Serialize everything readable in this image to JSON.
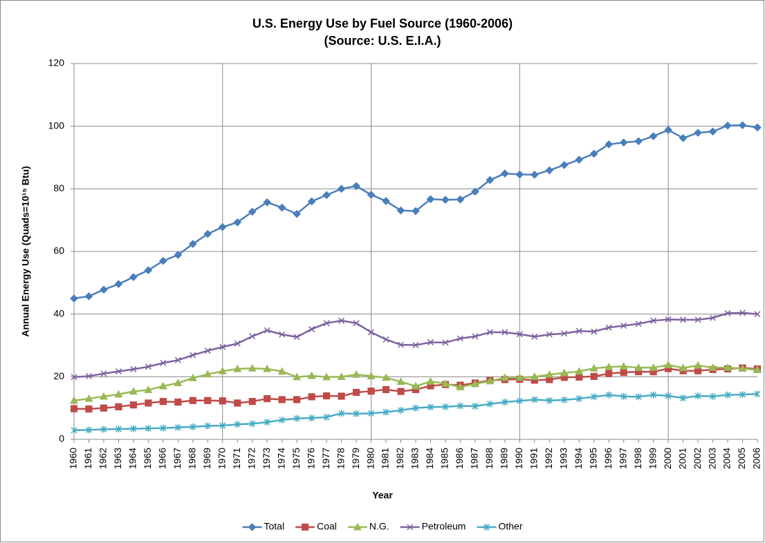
{
  "chart_data": {
    "type": "line",
    "title": "U.S. Energy Use by Fuel Source (1960-2006)",
    "subtitle": "(Source: U.S. E.I.A.)",
    "x_label": "Year",
    "y_label": "Annual Energy Use (Quads=10¹⁵ Btu)",
    "categories": [
      "1960",
      "1961",
      "1962",
      "1963",
      "1964",
      "1965",
      "1966",
      "1967",
      "1968",
      "1969",
      "1970",
      "1971",
      "1972",
      "1973",
      "1974",
      "1975",
      "1976",
      "1977",
      "1978",
      "1979",
      "1980",
      "1981",
      "1982",
      "1983",
      "1984",
      "1985",
      "1986",
      "1987",
      "1988",
      "1989",
      "1990",
      "1991",
      "1992",
      "1993",
      "1994",
      "1995",
      "1996",
      "1997",
      "1998",
      "1999",
      "2000",
      "2001",
      "2002",
      "2003",
      "2004",
      "2005",
      "2006"
    ],
    "ylim": [
      0,
      120
    ],
    "yticks": [
      0,
      20,
      40,
      60,
      80,
      100,
      120
    ],
    "grid": true,
    "legend": "bottom",
    "series": [
      {
        "name": "Total",
        "color": "#4a7ebb",
        "marker": "diamond",
        "values": [
          45,
          45.7,
          47.8,
          49.6,
          51.8,
          54,
          57,
          58.9,
          62.4,
          65.6,
          67.8,
          69.3,
          72.7,
          75.7,
          74,
          72,
          76,
          78,
          80,
          80.9,
          78.1,
          76.1,
          73.1,
          72.9,
          76.7,
          76.5,
          76.6,
          79.1,
          82.8,
          84.9,
          84.6,
          84.5,
          85.9,
          87.6,
          89.3,
          91.2,
          94.2,
          94.8,
          95.2,
          96.8,
          98.8,
          96.2,
          97.9,
          98.3,
          100.2,
          100.3,
          99.6
        ]
      },
      {
        "name": "Coal",
        "color": "#be4b48",
        "marker": "square",
        "values": [
          9.8,
          9.7,
          10,
          10.4,
          11,
          11.6,
          12.1,
          11.9,
          12.4,
          12.4,
          12.3,
          11.6,
          12.1,
          13,
          12.7,
          12.7,
          13.6,
          13.9,
          13.8,
          15,
          15.4,
          15.9,
          15.3,
          15.9,
          17.1,
          17.5,
          17.3,
          18,
          18.8,
          19.1,
          19.2,
          18.9,
          19.1,
          19.8,
          19.9,
          20.1,
          21,
          21.4,
          21.6,
          21.6,
          22.6,
          21.9,
          21.9,
          22.3,
          22.5,
          22.8,
          22.5
        ]
      },
      {
        "name": "N.G.",
        "color": "#98b954",
        "marker": "triangle",
        "values": [
          12.4,
          13,
          13.7,
          14.4,
          15.3,
          15.8,
          17,
          18,
          19.6,
          20.8,
          21.8,
          22.5,
          22.7,
          22.5,
          21.7,
          19.9,
          20.3,
          19.9,
          20,
          20.7,
          20.2,
          19.7,
          18.4,
          17,
          18.5,
          17.8,
          16.7,
          17.7,
          18.6,
          19.7,
          19.7,
          20,
          20.7,
          21.2,
          21.7,
          22.7,
          23.1,
          23.3,
          22.9,
          22.9,
          23.8,
          22.8,
          23.6,
          22.9,
          22.9,
          22.6,
          22.2
        ]
      },
      {
        "name": "Petroleum",
        "color": "#7d60a0",
        "marker": "x",
        "values": [
          19.9,
          20.2,
          21,
          21.7,
          22.4,
          23.2,
          24.4,
          25.3,
          26.9,
          28.3,
          29.5,
          30.6,
          32.9,
          34.8,
          33.5,
          32.7,
          35.2,
          37.1,
          37.9,
          37.1,
          34.2,
          31.9,
          30.2,
          30.1,
          31,
          30.9,
          32.2,
          32.9,
          34.2,
          34.2,
          33.6,
          32.8,
          33.5,
          33.8,
          34.6,
          34.4,
          35.7,
          36.3,
          36.9,
          37.9,
          38.3,
          38.2,
          38.2,
          38.8,
          40.3,
          40.4,
          40
        ]
      },
      {
        "name": "Other",
        "color": "#46aac5",
        "marker": "star",
        "values": [
          2.9,
          3,
          3.2,
          3.3,
          3.4,
          3.5,
          3.6,
          3.8,
          4,
          4.3,
          4.4,
          4.8,
          5,
          5.5,
          6.2,
          6.7,
          6.8,
          7.1,
          8.3,
          8.2,
          8.3,
          8.7,
          9.3,
          10,
          10.3,
          10.4,
          10.7,
          10.6,
          11.3,
          11.9,
          12.3,
          12.7,
          12.4,
          12.6,
          13,
          13.6,
          14.2,
          13.7,
          13.6,
          14.2,
          13.9,
          13.2,
          13.9,
          13.7,
          14.2,
          14.3,
          14.5
        ]
      }
    ]
  }
}
